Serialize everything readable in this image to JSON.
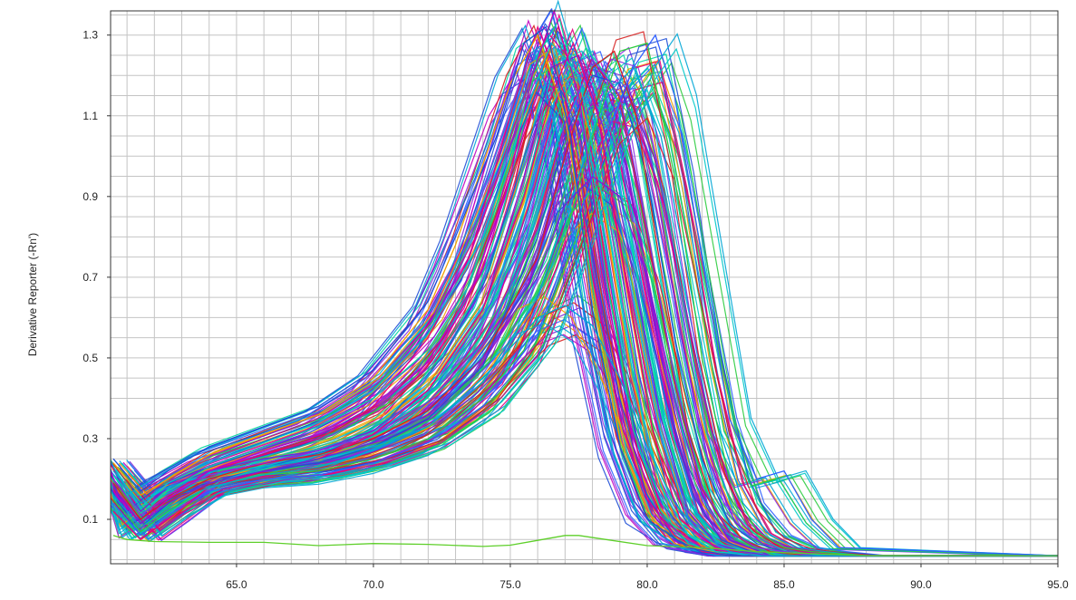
{
  "chart_data": {
    "type": "line",
    "title": "",
    "xlabel": "",
    "ylabel": "Derivative Reporter (-Rn')",
    "xlim": [
      60.4,
      95.0
    ],
    "ylim": [
      -0.01,
      1.36
    ],
    "grid": true,
    "legend": "none",
    "x_ticks": [
      65.0,
      70.0,
      75.0,
      80.0,
      85.0,
      90.0,
      95.0
    ],
    "x_tick_labels": [
      "65.0",
      "70.0",
      "75.0",
      "80.0",
      "85.0",
      "90.0",
      "95.0"
    ],
    "y_ticks": [
      0.1,
      0.3,
      0.5,
      0.7,
      0.9,
      1.1,
      1.3
    ],
    "y_tick_labels": [
      "0.1",
      "0.3",
      "0.5",
      "0.7",
      "0.9",
      "1.1",
      "1.3"
    ],
    "x_grid_step": 1.0,
    "y_grid_step": 0.05,
    "series_colors": [
      "#e6007e",
      "#7a1fd6",
      "#1f4fd6",
      "#00a6d6",
      "#00d6a0",
      "#2ecc40",
      "#f0a000",
      "#d62020",
      "#c000c0",
      "#3060ff",
      "#00c8c8",
      "#8a2be2"
    ],
    "series_note": "approx 190 overlapping melt curves",
    "series": [
      {
        "x": [
          60.5,
          61.5,
          62.5,
          64.0,
          66.0,
          68.0,
          70.0,
          72.0,
          73.5,
          75.0,
          76.0,
          77.0,
          78.0,
          79.0,
          80.0,
          81.0,
          82.0,
          83.0,
          84.0,
          85.0,
          86.0,
          88.0,
          90.0,
          92.0,
          95.0
        ],
        "y": [
          0.18,
          0.1,
          0.16,
          0.22,
          0.26,
          0.3,
          0.38,
          0.55,
          0.75,
          1.1,
          1.32,
          1.15,
          0.7,
          0.35,
          0.15,
          0.06,
          0.02,
          0.01,
          0.01,
          0.01,
          0.01,
          0.01,
          0.01,
          0.01,
          0.01
        ]
      },
      {
        "x": [
          60.5,
          61.5,
          62.5,
          64.0,
          66.0,
          68.0,
          70.0,
          72.0,
          74.0,
          75.5,
          76.5,
          77.5,
          78.5,
          79.5,
          80.5,
          81.5,
          82.5,
          83.5,
          84.5,
          86.0,
          88.0,
          90.0,
          95.0
        ],
        "y": [
          0.2,
          0.12,
          0.18,
          0.22,
          0.25,
          0.27,
          0.32,
          0.42,
          0.62,
          0.95,
          1.22,
          1.25,
          1.05,
          0.7,
          0.35,
          0.12,
          0.04,
          0.02,
          0.01,
          0.01,
          0.01,
          0.01,
          0.01
        ]
      },
      {
        "x": [
          60.5,
          61.5,
          62.5,
          64.0,
          66.0,
          68.0,
          70.0,
          72.0,
          74.0,
          76.0,
          77.0,
          78.0,
          79.0,
          80.0,
          81.0,
          82.0,
          83.0,
          84.0,
          85.0,
          86.0,
          88.0,
          95.0
        ],
        "y": [
          0.16,
          0.08,
          0.14,
          0.19,
          0.22,
          0.24,
          0.28,
          0.35,
          0.48,
          0.8,
          1.05,
          1.2,
          1.18,
          0.95,
          0.55,
          0.25,
          0.09,
          0.04,
          0.02,
          0.01,
          0.01,
          0.01
        ]
      },
      {
        "x": [
          60.5,
          61.5,
          62.5,
          64.0,
          66.0,
          68.0,
          70.0,
          72.0,
          74.0,
          76.0,
          77.5,
          78.5,
          79.5,
          80.5,
          81.5,
          82.5,
          83.5,
          84.5,
          85.5,
          86.5,
          88.0,
          95.0
        ],
        "y": [
          0.22,
          0.14,
          0.18,
          0.21,
          0.23,
          0.25,
          0.28,
          0.33,
          0.44,
          0.65,
          0.95,
          1.15,
          1.22,
          1.05,
          0.7,
          0.35,
          0.14,
          0.06,
          0.03,
          0.02,
          0.01,
          0.01
        ]
      },
      {
        "x": [
          60.5,
          61.5,
          62.5,
          64.0,
          66.0,
          68.0,
          70.0,
          72.0,
          73.5,
          75.0,
          76.0,
          76.8,
          77.6,
          78.5,
          79.5,
          80.5,
          81.5,
          82.5,
          84.0,
          86.0,
          95.0
        ],
        "y": [
          0.21,
          0.11,
          0.17,
          0.23,
          0.28,
          0.33,
          0.4,
          0.52,
          0.68,
          0.98,
          1.25,
          1.34,
          1.12,
          0.7,
          0.32,
          0.12,
          0.04,
          0.02,
          0.01,
          0.01,
          0.01
        ]
      },
      {
        "x": [
          60.5,
          61.5,
          62.5,
          64.0,
          66.0,
          68.0,
          70.0,
          72.0,
          74.0,
          75.5,
          77.0,
          78.0,
          79.0,
          80.0,
          81.0,
          82.0,
          83.0,
          84.0,
          85.0,
          86.0,
          88.0,
          95.0
        ],
        "y": [
          0.15,
          0.07,
          0.12,
          0.18,
          0.21,
          0.22,
          0.25,
          0.3,
          0.4,
          0.52,
          0.8,
          1.05,
          1.26,
          1.28,
          0.95,
          0.5,
          0.2,
          0.07,
          0.03,
          0.02,
          0.01,
          0.01
        ]
      },
      {
        "x": [
          60.5,
          61.5,
          62.5,
          64.0,
          66.0,
          68.0,
          70.0,
          72.0,
          73.0,
          74.0,
          75.0,
          76.0,
          77.0,
          78.0,
          79.0,
          80.0,
          81.0,
          83.0,
          85.0,
          95.0
        ],
        "y": [
          0.24,
          0.16,
          0.2,
          0.26,
          0.31,
          0.36,
          0.45,
          0.62,
          0.78,
          0.98,
          1.18,
          1.3,
          1.1,
          0.65,
          0.3,
          0.12,
          0.04,
          0.01,
          0.01,
          0.01
        ]
      },
      {
        "x": [
          60.5,
          61.5,
          62.5,
          64.0,
          66.0,
          68.0,
          70.0,
          72.0,
          74.0,
          76.0,
          77.0,
          78.0,
          78.8,
          79.6,
          80.5,
          81.5,
          82.5,
          83.5,
          84.5,
          86.0,
          95.0
        ],
        "y": [
          0.19,
          0.1,
          0.15,
          0.2,
          0.24,
          0.26,
          0.3,
          0.37,
          0.5,
          0.75,
          1.0,
          1.22,
          1.26,
          1.1,
          0.72,
          0.32,
          0.12,
          0.05,
          0.02,
          0.01,
          0.01
        ]
      },
      {
        "x": [
          60.5,
          61.5,
          62.5,
          64.0,
          66.0,
          68.0,
          70.0,
          72.0,
          74.0,
          75.0,
          75.8,
          76.6,
          77.5,
          78.5,
          79.5,
          80.5,
          82.0,
          84.0,
          95.0
        ],
        "y": [
          0.17,
          0.09,
          0.15,
          0.22,
          0.27,
          0.31,
          0.37,
          0.49,
          0.72,
          0.95,
          1.2,
          1.36,
          1.15,
          0.68,
          0.28,
          0.1,
          0.03,
          0.01,
          0.01
        ]
      },
      {
        "x": [
          60.5,
          61.5,
          62.5,
          64.0,
          66.0,
          68.0,
          70.0,
          72.0,
          74.0,
          76.0,
          77.5,
          78.5,
          79.5,
          80.3,
          81.0,
          82.0,
          83.0,
          84.0,
          85.0,
          86.0,
          87.0,
          95.0
        ],
        "y": [
          0.14,
          0.06,
          0.11,
          0.17,
          0.2,
          0.21,
          0.24,
          0.29,
          0.38,
          0.56,
          0.85,
          1.05,
          1.22,
          1.3,
          1.15,
          0.75,
          0.35,
          0.2,
          0.22,
          0.1,
          0.03,
          0.01
        ]
      },
      {
        "x": [
          60.5,
          61.5,
          62.5,
          64.0,
          66.0,
          68.0,
          70.0,
          72.0,
          74.0,
          75.5,
          76.5,
          77.5,
          78.5,
          79.5,
          80.5,
          81.5,
          82.5,
          84.0,
          95.0
        ],
        "y": [
          0.23,
          0.13,
          0.19,
          0.24,
          0.29,
          0.34,
          0.42,
          0.56,
          0.8,
          1.1,
          1.28,
          1.2,
          0.85,
          0.45,
          0.18,
          0.06,
          0.02,
          0.01,
          0.01
        ]
      },
      {
        "x": [
          60.5,
          61.5,
          62.5,
          64.0,
          66.0,
          68.0,
          70.0,
          72.0,
          74.0,
          76.0,
          77.0,
          78.0,
          79.0,
          80.0,
          81.0,
          82.0,
          83.0,
          84.0,
          86.0,
          95.0
        ],
        "y": [
          0.2,
          0.11,
          0.16,
          0.21,
          0.24,
          0.27,
          0.31,
          0.39,
          0.54,
          0.82,
          1.08,
          1.24,
          1.15,
          0.82,
          0.45,
          0.18,
          0.07,
          0.03,
          0.01,
          0.01
        ]
      },
      {
        "x": [
          60.5,
          61.5,
          62.5,
          64.0,
          66.0,
          68.0,
          70.0,
          72.0,
          74.0,
          75.5,
          76.5,
          77.3,
          78.2,
          79.2,
          80.2,
          81.2,
          82.5,
          84.0,
          95.0
        ],
        "y": [
          0.12,
          0.05,
          0.1,
          0.18,
          0.22,
          0.25,
          0.31,
          0.42,
          0.62,
          0.9,
          1.15,
          1.28,
          1.1,
          0.7,
          0.32,
          0.1,
          0.03,
          0.01,
          0.01
        ]
      },
      {
        "x": [
          60.5,
          61.5,
          62.5,
          64.0,
          66.0,
          68.0,
          70.0,
          72.0,
          74.0,
          76.0,
          77.0,
          78.0,
          79.0,
          80.0,
          81.0,
          82.0,
          83.0,
          84.5,
          95.0
        ],
        "y": [
          0.18,
          0.09,
          0.14,
          0.19,
          0.22,
          0.25,
          0.29,
          0.36,
          0.5,
          0.7,
          0.88,
          0.95,
          0.9,
          0.7,
          0.4,
          0.16,
          0.05,
          0.01,
          0.01
        ]
      },
      {
        "x": [
          60.5,
          61.5,
          62.5,
          64.0,
          66.0,
          68.0,
          70.0,
          72.0,
          73.0,
          74.5,
          75.5,
          76.3,
          77.2,
          78.0,
          79.0,
          80.0,
          81.5,
          83.0,
          95.0
        ],
        "y": [
          0.25,
          0.17,
          0.22,
          0.28,
          0.33,
          0.38,
          0.47,
          0.64,
          0.8,
          1.05,
          1.28,
          1.32,
          1.05,
          0.62,
          0.28,
          0.1,
          0.03,
          0.01,
          0.01
        ]
      },
      {
        "x": [
          60.5,
          61.5,
          62.5,
          64.0,
          66.0,
          68.0,
          70.0,
          72.0,
          74.0,
          76.0,
          77.0,
          78.0,
          79.0,
          80.0,
          81.0,
          82.0,
          83.0,
          84.0,
          95.0
        ],
        "y": [
          0.16,
          0.08,
          0.13,
          0.18,
          0.21,
          0.23,
          0.27,
          0.33,
          0.45,
          0.6,
          0.63,
          0.58,
          0.45,
          0.28,
          0.14,
          0.06,
          0.02,
          0.01,
          0.01
        ]
      },
      {
        "x": [
          60.5,
          61.0,
          62.0,
          64.0,
          66.0,
          68.0,
          70.0,
          72.0,
          74.0,
          75.0,
          76.0,
          77.0,
          77.5,
          78.5,
          80.0,
          82.0,
          84.0,
          86.0,
          88.0,
          90.0,
          95.0
        ],
        "y": [
          0.06,
          0.05,
          0.045,
          0.043,
          0.043,
          0.035,
          0.04,
          0.038,
          0.033,
          0.036,
          0.048,
          0.06,
          0.06,
          0.05,
          0.035,
          0.03,
          0.02,
          0.015,
          0.01,
          0.01,
          0.01
        ]
      }
    ]
  }
}
